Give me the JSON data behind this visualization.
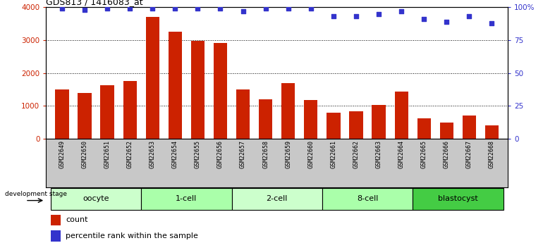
{
  "title": "GDS813 / 1416083_at",
  "samples": [
    "GSM22649",
    "GSM22650",
    "GSM22651",
    "GSM22652",
    "GSM22653",
    "GSM22654",
    "GSM22655",
    "GSM22656",
    "GSM22657",
    "GSM22658",
    "GSM22659",
    "GSM22660",
    "GSM22661",
    "GSM22662",
    "GSM22663",
    "GSM22664",
    "GSM22665",
    "GSM22666",
    "GSM22667",
    "GSM22668"
  ],
  "counts": [
    1500,
    1380,
    1630,
    1760,
    3700,
    3250,
    2980,
    2920,
    1500,
    1200,
    1680,
    1180,
    790,
    820,
    1020,
    1430,
    620,
    490,
    700,
    390
  ],
  "percentiles": [
    99,
    98,
    99,
    99,
    99,
    99,
    99,
    99,
    97,
    99,
    99,
    99,
    93,
    93,
    95,
    97,
    91,
    89,
    93,
    88
  ],
  "bar_color": "#cc2200",
  "dot_color": "#3333cc",
  "ylim_left": [
    0,
    4000
  ],
  "ylim_right": [
    0,
    100
  ],
  "yticks_left": [
    0,
    1000,
    2000,
    3000,
    4000
  ],
  "ytick_labels_left": [
    "0",
    "1000",
    "2000",
    "3000",
    "4000"
  ],
  "yticks_right": [
    0,
    25,
    50,
    75,
    100
  ],
  "ytick_labels_right": [
    "0",
    "25",
    "50",
    "75",
    "100%"
  ],
  "groups": [
    {
      "label": "oocyte",
      "start": 0,
      "end": 3,
      "color": "#ccffcc"
    },
    {
      "label": "1-cell",
      "start": 4,
      "end": 7,
      "color": "#aaffaa"
    },
    {
      "label": "2-cell",
      "start": 8,
      "end": 11,
      "color": "#ccffcc"
    },
    {
      "label": "8-cell",
      "start": 12,
      "end": 15,
      "color": "#aaffaa"
    },
    {
      "label": "blastocyst",
      "start": 16,
      "end": 19,
      "color": "#44cc44"
    }
  ],
  "legend_bar_label": "count",
  "legend_dot_label": "percentile rank within the sample",
  "dev_stage_label": "development stage",
  "background_color": "#ffffff",
  "tick_area_color": "#c8c8c8"
}
